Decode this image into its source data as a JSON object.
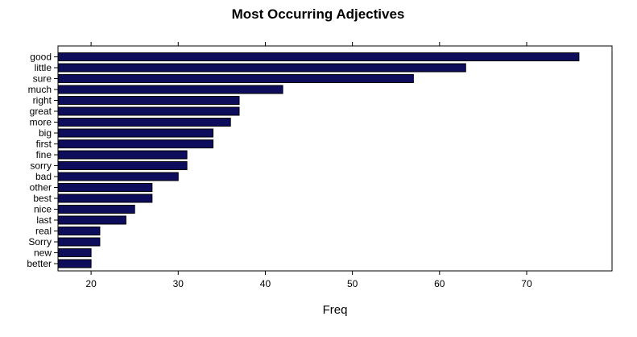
{
  "chart_data": {
    "type": "bar",
    "orientation": "horizontal",
    "title": "Most Occurring Adjectives",
    "xlabel": "Freq",
    "ylabel": "",
    "xlim": [
      16.2,
      79.8
    ],
    "xticks": [
      20,
      30,
      40,
      50,
      60,
      70
    ],
    "xtick_labels": [
      "20",
      "30",
      "40",
      "50",
      "60",
      "70"
    ],
    "grid": false,
    "legend": "none",
    "bar_color": "#0d0d5c",
    "categories": [
      "good",
      "little",
      "sure",
      "much",
      "right",
      "great",
      "more",
      "big",
      "first",
      "fine",
      "sorry",
      "bad",
      "other",
      "best",
      "nice",
      "last",
      "real",
      "Sorry",
      "new",
      "better"
    ],
    "values": [
      76,
      63,
      57,
      42,
      37,
      37,
      36,
      34,
      34,
      31,
      31,
      30,
      27,
      27,
      25,
      24,
      21,
      21,
      20,
      20
    ]
  }
}
